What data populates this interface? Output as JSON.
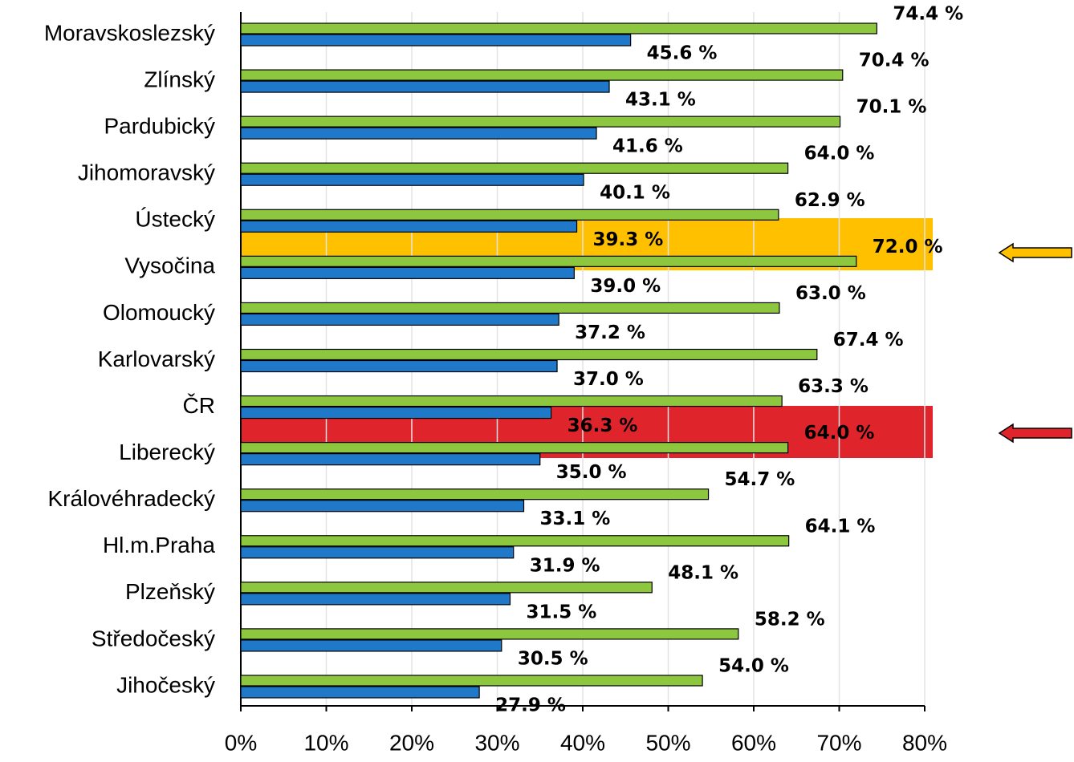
{
  "chart_data": {
    "type": "bar",
    "orientation": "horizontal",
    "categories": [
      "Moravskoslezský",
      "Zlínský",
      "Pardubický",
      "Jihomoravský",
      "Ústecký",
      "Vysočina",
      "Olomoucký",
      "Karlovarský",
      "ČR",
      "Liberecký",
      "Královéhradecký",
      "Hl.m.Praha",
      "Plzeňský",
      "Středočeský",
      "Jihočeský"
    ],
    "series": [
      {
        "color": "#8dc63f",
        "values": [
          74.4,
          70.4,
          70.1,
          64.0,
          62.9,
          72.0,
          63.0,
          67.4,
          63.3,
          64.0,
          54.7,
          64.1,
          48.1,
          58.2,
          54.0
        ],
        "value_labels": [
          "74.4 %",
          "70.4 %",
          "70.1 %",
          "64.0 %",
          "62.9 %",
          "72.0 %",
          "63.0 %",
          "67.4 %",
          "63.3 %",
          "64.0 %",
          "54.7 %",
          "64.1 %",
          "48.1 %",
          "58.2 %",
          "54.0 %"
        ]
      },
      {
        "color": "#1f78c8",
        "values": [
          45.6,
          43.1,
          41.6,
          40.1,
          39.3,
          39.0,
          37.2,
          37.0,
          36.3,
          35.0,
          33.1,
          31.9,
          31.5,
          30.5,
          27.9
        ],
        "value_labels": [
          "45.6 %",
          "43.1 %",
          "41.6 %",
          "40.1 %",
          "39.3 %",
          "39.0 %",
          "37.2 %",
          "37.0 %",
          "36.3 %",
          "35.0 %",
          "33.1 %",
          "31.9 %",
          "31.5 %",
          "30.5 %",
          "27.9 %"
        ]
      }
    ],
    "xlim": [
      0,
      80
    ],
    "xticks": [
      {
        "value": 0,
        "label": "0%"
      },
      {
        "value": 10,
        "label": "10%"
      },
      {
        "value": 20,
        "label": "20%"
      },
      {
        "value": 30,
        "label": "30%"
      },
      {
        "value": 40,
        "label": "40%"
      },
      {
        "value": 50,
        "label": "50%"
      },
      {
        "value": 60,
        "label": "60%"
      },
      {
        "value": 70,
        "label": "70%"
      },
      {
        "value": 80,
        "label": "80%"
      }
    ],
    "grid": true
  }
}
